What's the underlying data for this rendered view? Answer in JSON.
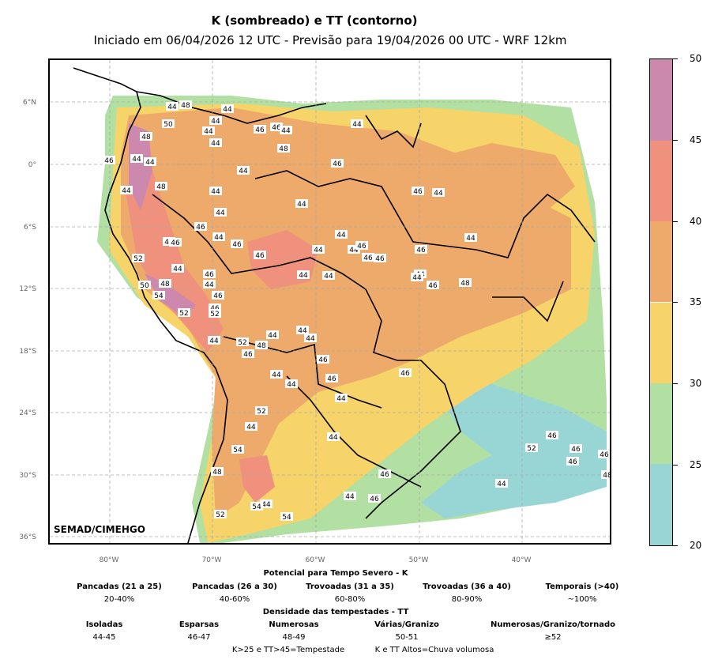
{
  "header": {
    "title": "K (sombreado) e TT (contorno)",
    "subtitle": "Iniciado em 06/04/2026 12 UTC - Previsão para 19/04/2026 00 UTC - WRF 12km"
  },
  "map": {
    "credit": "SEMAD/CIMEHGO",
    "lat_labels": [
      "6°N",
      "0°",
      "6°S",
      "12°S",
      "18°S",
      "24°S",
      "30°S",
      "36°S"
    ],
    "lon_labels": [
      "80°W",
      "70°W",
      "60°W",
      "50°W",
      "40°W"
    ],
    "contour_labels": [
      "44",
      "48",
      "44",
      "44",
      "50",
      "48",
      "44",
      "44",
      "46",
      "46",
      "44",
      "48",
      "46",
      "44",
      "44",
      "44",
      "48",
      "44",
      "44",
      "46",
      "44",
      "46",
      "44",
      "44",
      "44",
      "46",
      "44",
      "46",
      "46",
      "52",
      "44",
      "44",
      "46",
      "44",
      "46",
      "46",
      "46",
      "44",
      "44",
      "44",
      "44",
      "46",
      "44",
      "46",
      "44",
      "46",
      "44",
      "46",
      "44",
      "48",
      "50",
      "48",
      "54",
      "46",
      "44",
      "52",
      "52",
      "44",
      "44",
      "44",
      "52",
      "48",
      "46",
      "44",
      "46",
      "46",
      "44",
      "44",
      "46",
      "52",
      "44",
      "44",
      "54",
      "48",
      "46",
      "44",
      "46",
      "44",
      "54",
      "52",
      "54",
      "46",
      "52",
      "46",
      "46",
      "46",
      "48",
      "44"
    ]
  },
  "colorbar": {
    "ticks": [
      "50",
      "45",
      "40",
      "35",
      "30",
      "25",
      "20"
    ],
    "colors": [
      "#cd88ae",
      "#ef917c",
      "#eeaa6b",
      "#f6d46a",
      "#b2e0a2",
      "#98d6d6"
    ]
  },
  "legend": {
    "k_title": "Potencial para Tempo Severo - K",
    "k_items": [
      {
        "name": "Pancadas (21 a 25)",
        "value": "20-40%"
      },
      {
        "name": "Pancadas (26 a 30)",
        "value": "40-60%"
      },
      {
        "name": "Trovoadas (31 a 35)",
        "value": "60-80%"
      },
      {
        "name": "Trovoadas (36 a 40)",
        "value": "80-90%"
      },
      {
        "name": "Temporais (>40)",
        "value": "~100%"
      }
    ],
    "tt_title": "Densidade das tempestades - TT",
    "tt_items": [
      {
        "name": "Isoladas",
        "value": "44-45"
      },
      {
        "name": "Esparsas",
        "value": "46-47"
      },
      {
        "name": "Numerosas",
        "value": "48-49"
      },
      {
        "name": "Várias/Granizo",
        "value": "50-51"
      },
      {
        "name": "Numerosas/Granizo/tornado",
        "value": "≥52"
      }
    ],
    "note_1": "K>25 e TT>45=Tempestade",
    "note_2": "K e TT Altos=Chuva volumosa"
  }
}
